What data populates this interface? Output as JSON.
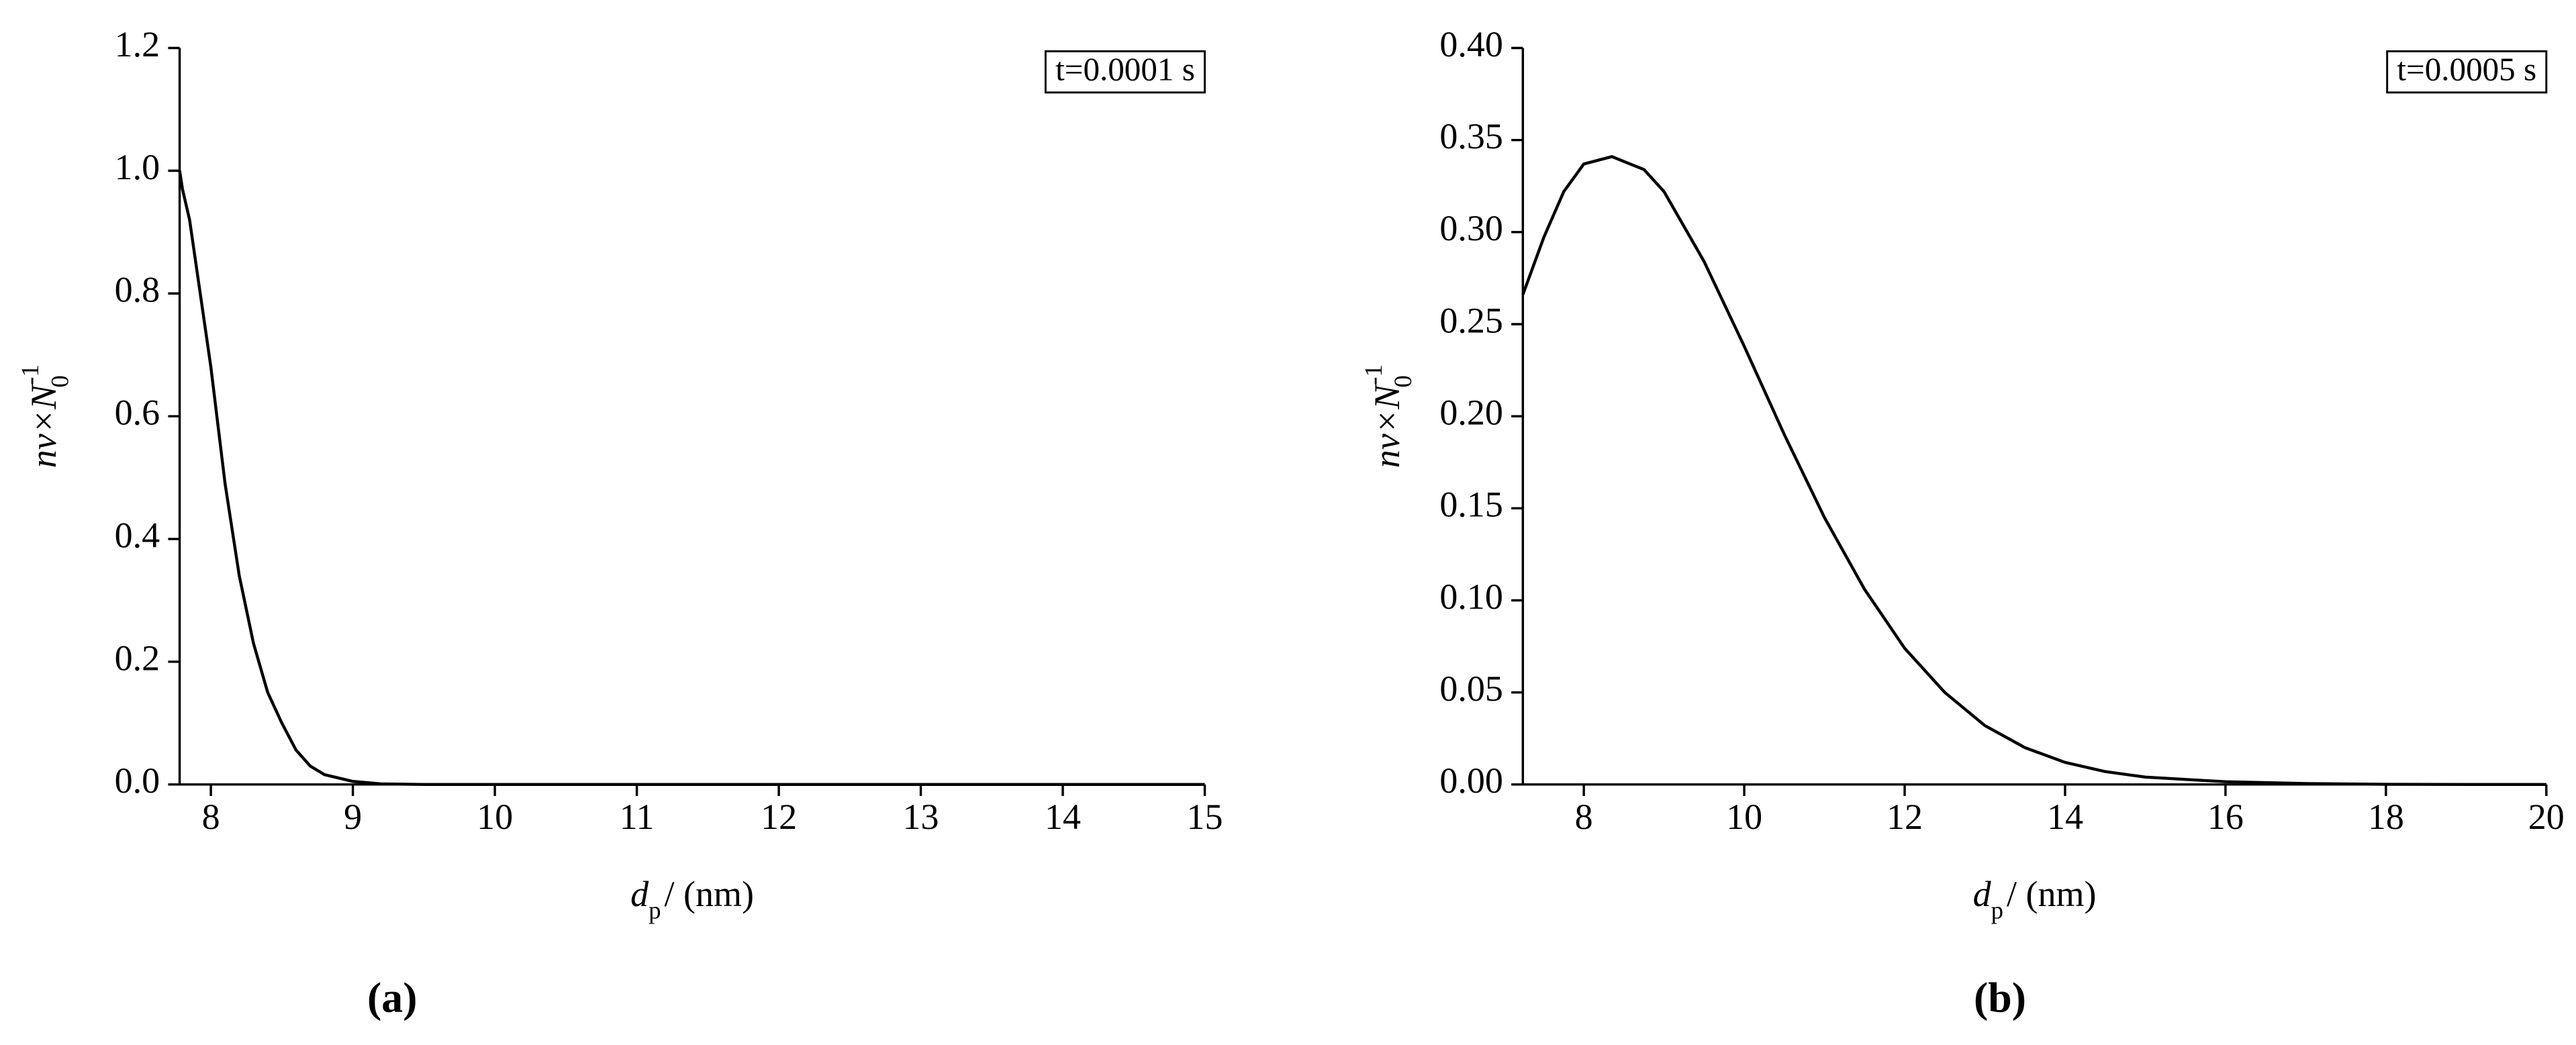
{
  "chart_data": [
    {
      "type": "line",
      "panel_label": "(a)",
      "annotation": "t=0.0001 s",
      "xlabel": {
        "text": "d",
        "sub": "p",
        "after": "/ (nm)"
      },
      "ylabel": {
        "text": "nv×N",
        "sub": "0",
        "sup": "-1"
      },
      "x": [
        7.78,
        7.8,
        7.85,
        7.9,
        7.95,
        8.0,
        8.1,
        8.2,
        8.3,
        8.4,
        8.5,
        8.6,
        8.7,
        8.8,
        9.0,
        9.2,
        9.5,
        10,
        11,
        12,
        13,
        14,
        15
      ],
      "series": [
        {
          "name": "nv",
          "color": "#000000",
          "values": [
            1.0,
            0.97,
            0.92,
            0.84,
            0.76,
            0.68,
            0.49,
            0.34,
            0.23,
            0.15,
            0.1,
            0.056,
            0.03,
            0.016,
            0.005,
            0.001,
            0,
            0,
            0,
            0,
            0,
            0,
            0
          ]
        }
      ],
      "xlim": [
        7.78,
        15
      ],
      "xticks": [
        8,
        9,
        10,
        11,
        12,
        13,
        14,
        15
      ],
      "ylim": [
        0,
        1.2
      ],
      "yticks": [
        {
          "value": 0,
          "label": "0.0"
        },
        0.2,
        0.4,
        0.6,
        0.8,
        {
          "value": 1,
          "label": "1.0"
        },
        1.2
      ]
    },
    {
      "type": "line",
      "panel_label": "(b)",
      "annotation": "t=0.0005 s",
      "xlabel": {
        "text": "d",
        "sub": "p",
        "after": "/ (nm)"
      },
      "ylabel": {
        "text": "nv×N",
        "sub": "0",
        "sup": "-1"
      },
      "x": [
        7.24,
        7.5,
        7.75,
        8.0,
        8.35,
        8.75,
        9.0,
        9.5,
        10,
        10.5,
        11,
        11.5,
        12,
        12.5,
        13,
        13.5,
        14,
        14.5,
        15,
        16,
        17,
        18,
        19,
        20
      ],
      "series": [
        {
          "name": "nv",
          "color": "#000000",
          "values": [
            0.266,
            0.297,
            0.322,
            0.337,
            0.341,
            0.334,
            0.322,
            0.284,
            0.238,
            0.19,
            0.145,
            0.106,
            0.074,
            0.05,
            0.032,
            0.02,
            0.012,
            0.007,
            0.004,
            0.0015,
            0.0005,
            0.0001,
            0,
            0
          ]
        }
      ],
      "xlim": [
        7.24,
        20
      ],
      "xticks": [
        8,
        10,
        12,
        14,
        16,
        18,
        20
      ],
      "ylim": [
        0,
        0.4
      ],
      "yticks": [
        {
          "value": 0,
          "label": "0.00"
        },
        0.05,
        {
          "value": 0.1,
          "label": "0.10"
        },
        0.15,
        {
          "value": 0.2,
          "label": "0.20"
        },
        0.25,
        {
          "value": 0.3,
          "label": "0.30"
        },
        0.35,
        {
          "value": 0.4,
          "label": "0.40"
        }
      ]
    }
  ]
}
